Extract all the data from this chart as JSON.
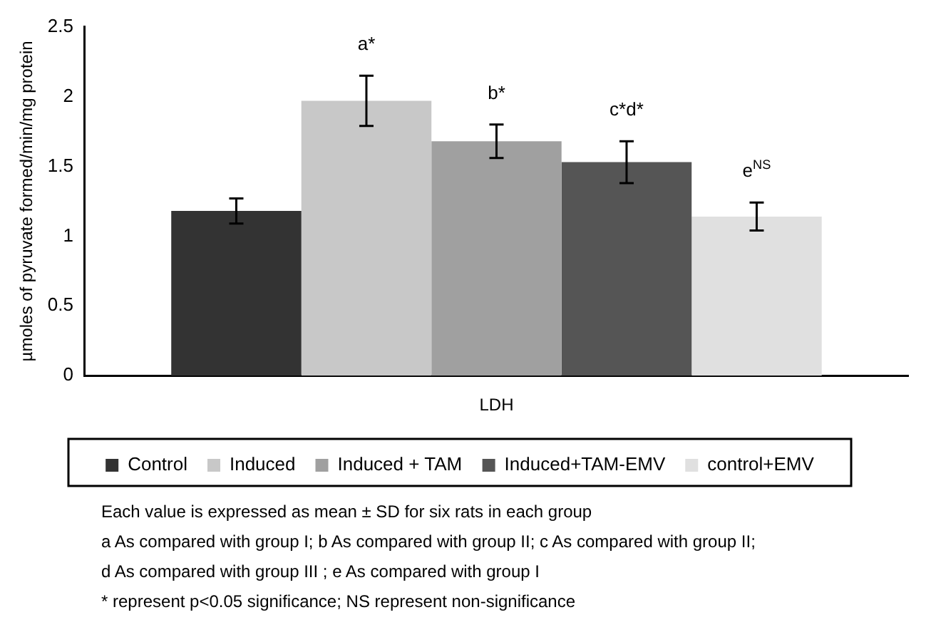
{
  "chart_data": {
    "type": "bar",
    "ylabel": "µmoles of pyruvate formed/min/mg protein",
    "categories": [
      "LDH"
    ],
    "series": [
      {
        "name": "Control",
        "color": "#333333",
        "values": [
          1.18
        ],
        "errors": [
          0.09
        ]
      },
      {
        "name": "Induced",
        "color": "#c8c8c8",
        "values": [
          1.97
        ],
        "errors": [
          0.18
        ],
        "value_labels": [
          "a*"
        ]
      },
      {
        "name": "Induced + TAM",
        "color": "#a0a0a0",
        "values": [
          1.68
        ],
        "errors": [
          0.12
        ],
        "value_labels": [
          "b*"
        ]
      },
      {
        "name": "Induced+TAM-EMV",
        "color": "#555555",
        "values": [
          1.53
        ],
        "errors": [
          0.15
        ],
        "value_labels": [
          "c*d*"
        ]
      },
      {
        "name": "control+EMV",
        "color": "#e0e0e0",
        "values": [
          1.14
        ],
        "errors": [
          0.1
        ],
        "value_labels": [
          "e$^{NS}$"
        ]
      }
    ],
    "ylim": [
      0,
      2.5
    ],
    "yticks": [
      0,
      0.5,
      1,
      1.5,
      2,
      2.5
    ],
    "grid": false,
    "legend": "bottom",
    "annotations": [
      "Each value is expressed as mean ± SD for six rats in each group",
      "a As compared with group I; b As compared with group II; c As compared with group II;",
      "d As compared with group III ;  e As compared with group I",
      "* represent  p<0.05 significance;  NS represent non-significance"
    ]
  }
}
